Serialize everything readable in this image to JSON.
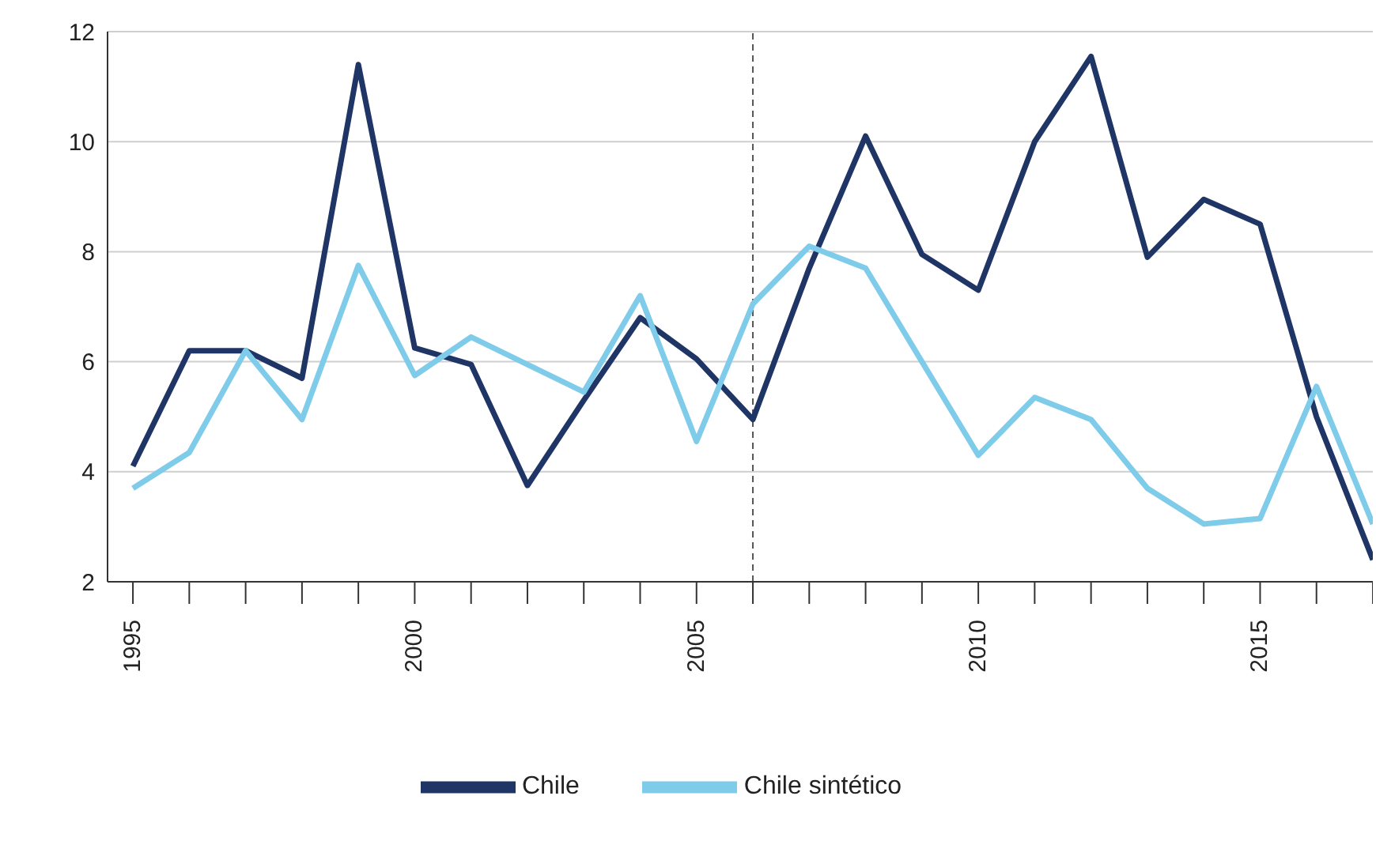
{
  "chart_data": {
    "type": "line",
    "x": [
      1995,
      1996,
      1997,
      1998,
      1999,
      2000,
      2001,
      2002,
      2003,
      2004,
      2005,
      2006,
      2007,
      2008,
      2009,
      2010,
      2011,
      2012,
      2013,
      2014,
      2015,
      2016,
      2017
    ],
    "series": [
      {
        "name": "Chile",
        "color": "#1f3566",
        "values": [
          4.1,
          6.2,
          6.2,
          5.7,
          11.4,
          6.25,
          5.95,
          3.75,
          5.3,
          6.8,
          6.05,
          4.95,
          7.7,
          10.1,
          7.95,
          7.3,
          10.0,
          11.55,
          7.9,
          8.95,
          8.5,
          5.0,
          2.4
        ]
      },
      {
        "name": "Chile sintético",
        "color": "#7ecbea",
        "values": [
          3.7,
          4.35,
          6.2,
          4.95,
          7.75,
          5.75,
          6.45,
          5.95,
          5.45,
          7.2,
          4.55,
          7.05,
          8.1,
          7.7,
          6.0,
          4.3,
          5.35,
          4.95,
          3.7,
          3.05,
          3.15,
          5.55,
          3.05
        ]
      }
    ],
    "xlim": [
      1994.55,
      2017
    ],
    "xticks": [
      1995,
      {
        "value": 1996,
        "label": null
      },
      {
        "value": 1997,
        "label": null
      },
      {
        "value": 1998,
        "label": null
      },
      {
        "value": 1999,
        "label": null
      },
      2000,
      {
        "value": 2001,
        "label": null
      },
      {
        "value": 2002,
        "label": null
      },
      {
        "value": 2003,
        "label": null
      },
      {
        "value": 2004,
        "label": null
      },
      2005,
      {
        "value": 2006,
        "label": null
      },
      {
        "value": 2007,
        "label": null
      },
      {
        "value": 2008,
        "label": null
      },
      {
        "value": 2009,
        "label": null
      },
      2010,
      {
        "value": 2011,
        "label": null
      },
      {
        "value": 2012,
        "label": null
      },
      {
        "value": 2013,
        "label": null
      },
      {
        "value": 2014,
        "label": null
      },
      2015,
      {
        "value": 2016,
        "label": null
      },
      {
        "value": 2017,
        "label": null
      }
    ],
    "ylim": [
      2,
      12
    ],
    "yticks": [
      2,
      4,
      6,
      8,
      10,
      12
    ],
    "ref_lines": [
      {
        "axis": "x",
        "value": 2006,
        "color": "#555555",
        "line_style": "dashed"
      }
    ],
    "grid": "y",
    "legend": "bottom",
    "marker": "none",
    "line_style": "solid"
  }
}
